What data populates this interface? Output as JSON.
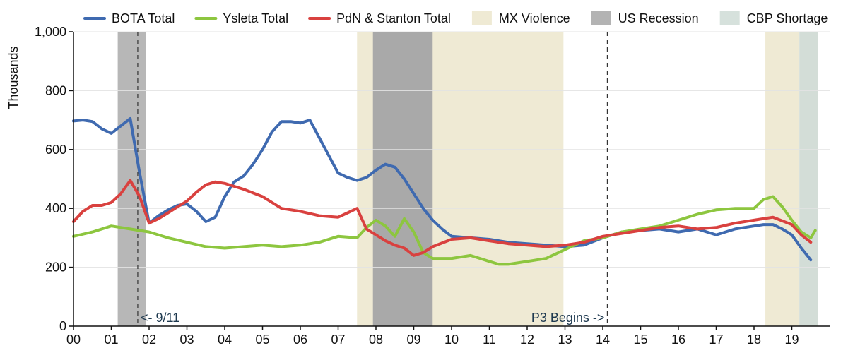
{
  "chart_data": {
    "type": "line",
    "ylabel": "Thousands",
    "ylim": [
      0,
      1000
    ],
    "yticks": [
      "0",
      "200",
      "400",
      "600",
      "800",
      "1,000"
    ],
    "xlim": [
      2000.0,
      2019.75
    ],
    "xtick_labels": [
      "00",
      "01",
      "02",
      "03",
      "04",
      "05",
      "06",
      "07",
      "08",
      "09",
      "10",
      "11",
      "12",
      "13",
      "14",
      "15",
      "16",
      "17",
      "18",
      "19"
    ],
    "grid": "horizontal",
    "legend_position": "top",
    "legend": [
      {
        "label": "BOTA Total",
        "kind": "line",
        "color": "#3f6ab0"
      },
      {
        "label": "Ysleta Total",
        "kind": "line",
        "color": "#8dc63f"
      },
      {
        "label": "PdN & Stanton Total",
        "kind": "line",
        "color": "#d9413f"
      },
      {
        "label": "MX Violence",
        "kind": "band",
        "color": "#efead4"
      },
      {
        "label": "US Recession",
        "kind": "band",
        "color": "#b3b3b3"
      },
      {
        "label": "CBP Shortage",
        "kind": "band",
        "color": "#d6e1dc"
      }
    ],
    "shaded_periods": [
      {
        "category": "US Recession",
        "start": 2001.17,
        "end": 2001.92,
        "color": "#b7b7b7"
      },
      {
        "category": "MX Violence",
        "start": 2007.5,
        "end": 2012.96,
        "color": "#efead4"
      },
      {
        "category": "US Recession",
        "start": 2007.92,
        "end": 2009.5,
        "color": "#a9a9a9"
      },
      {
        "category": "MX Violence",
        "start": 2018.3,
        "end": 2019.2,
        "color": "#efead4"
      },
      {
        "category": "CBP Shortage",
        "start": 2019.2,
        "end": 2019.7,
        "color": "#d3ddd7"
      }
    ],
    "vlines": [
      {
        "x": 2001.7,
        "label": "<- 9/11",
        "label_side": "right"
      },
      {
        "x": 2014.12,
        "label": "P3 Begins ->",
        "label_side": "left"
      }
    ],
    "series": [
      {
        "name": "BOTA Total",
        "color": "#3f6ab0",
        "x": [
          2000.0,
          2000.25,
          2000.5,
          2000.75,
          2001.0,
          2001.25,
          2001.5,
          2001.75,
          2002.0,
          2002.25,
          2002.5,
          2002.75,
          2003.0,
          2003.25,
          2003.5,
          2003.75,
          2004.0,
          2004.25,
          2004.5,
          2004.75,
          2005.0,
          2005.25,
          2005.5,
          2005.75,
          2006.0,
          2006.25,
          2006.5,
          2006.75,
          2007.0,
          2007.25,
          2007.5,
          2007.75,
          2008.0,
          2008.25,
          2008.5,
          2008.75,
          2009.0,
          2009.25,
          2009.5,
          2009.75,
          2010.0,
          2010.5,
          2011.0,
          2011.5,
          2012.0,
          2012.5,
          2013.0,
          2013.5,
          2014.0,
          2014.5,
          2015.0,
          2015.5,
          2016.0,
          2016.5,
          2017.0,
          2017.5,
          2018.0,
          2018.25,
          2018.5,
          2018.75,
          2019.0,
          2019.25,
          2019.5
        ],
        "values": [
          697,
          700,
          695,
          670,
          655,
          680,
          705,
          520,
          350,
          375,
          395,
          410,
          415,
          390,
          355,
          370,
          440,
          490,
          510,
          550,
          600,
          660,
          695,
          695,
          690,
          700,
          640,
          580,
          520,
          505,
          495,
          505,
          530,
          550,
          540,
          500,
          450,
          400,
          360,
          330,
          305,
          300,
          295,
          285,
          280,
          275,
          270,
          275,
          300,
          320,
          325,
          330,
          320,
          330,
          310,
          330,
          340,
          345,
          345,
          330,
          310,
          265,
          225
        ]
      },
      {
        "name": "Ysleta Total",
        "color": "#8dc63f",
        "x": [
          2000.0,
          2000.5,
          2001.0,
          2001.5,
          2002.0,
          2002.5,
          2003.0,
          2003.5,
          2004.0,
          2004.5,
          2005.0,
          2005.5,
          2006.0,
          2006.5,
          2007.0,
          2007.5,
          2007.75,
          2008.0,
          2008.25,
          2008.5,
          2008.75,
          2009.0,
          2009.25,
          2009.5,
          2010.0,
          2010.5,
          2011.0,
          2011.25,
          2011.5,
          2012.0,
          2012.5,
          2013.0,
          2013.5,
          2014.0,
          2014.5,
          2015.0,
          2015.5,
          2016.0,
          2016.5,
          2017.0,
          2017.5,
          2018.0,
          2018.25,
          2018.5,
          2018.75,
          2019.0,
          2019.25,
          2019.5,
          2019.62
        ],
        "values": [
          305,
          320,
          340,
          330,
          320,
          300,
          285,
          270,
          265,
          270,
          275,
          270,
          275,
          285,
          305,
          300,
          335,
          360,
          340,
          305,
          365,
          320,
          250,
          230,
          230,
          240,
          220,
          210,
          210,
          220,
          230,
          260,
          290,
          300,
          320,
          330,
          340,
          360,
          380,
          395,
          400,
          400,
          430,
          440,
          405,
          360,
          320,
          300,
          325
        ]
      },
      {
        "name": "PdN & Stanton Total",
        "color": "#d9413f",
        "x": [
          2000.0,
          2000.25,
          2000.5,
          2000.75,
          2001.0,
          2001.25,
          2001.5,
          2001.75,
          2002.0,
          2002.25,
          2002.5,
          2002.75,
          2003.0,
          2003.25,
          2003.5,
          2003.75,
          2004.0,
          2004.5,
          2005.0,
          2005.5,
          2006.0,
          2006.5,
          2007.0,
          2007.25,
          2007.5,
          2007.75,
          2008.0,
          2008.25,
          2008.5,
          2008.75,
          2009.0,
          2009.25,
          2009.5,
          2010.0,
          2010.5,
          2011.0,
          2011.5,
          2012.0,
          2012.5,
          2013.0,
          2013.5,
          2014.0,
          2014.5,
          2015.0,
          2015.5,
          2016.0,
          2016.5,
          2017.0,
          2017.5,
          2018.0,
          2018.5,
          2019.0,
          2019.25,
          2019.5
        ],
        "values": [
          355,
          390,
          410,
          410,
          420,
          450,
          495,
          440,
          350,
          365,
          385,
          405,
          425,
          455,
          480,
          490,
          485,
          465,
          440,
          400,
          390,
          375,
          370,
          385,
          400,
          330,
          310,
          290,
          275,
          265,
          240,
          250,
          270,
          295,
          300,
          290,
          280,
          275,
          270,
          275,
          285,
          305,
          315,
          325,
          335,
          340,
          330,
          335,
          350,
          360,
          370,
          345,
          310,
          285
        ]
      }
    ]
  }
}
